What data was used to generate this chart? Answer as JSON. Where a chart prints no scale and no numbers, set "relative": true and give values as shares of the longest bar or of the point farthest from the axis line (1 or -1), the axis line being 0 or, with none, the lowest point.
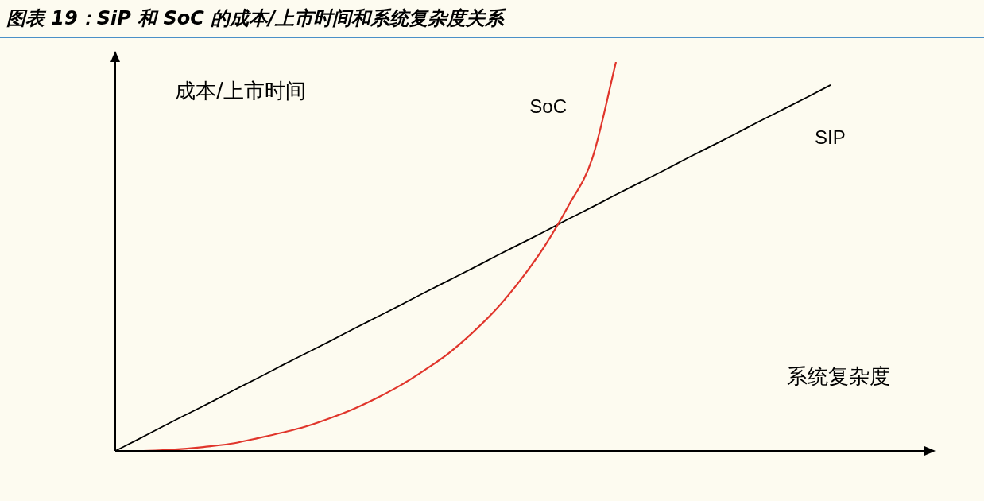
{
  "chart_data": {
    "type": "line",
    "title": "图表 19：SiP 和 SoC 的成本/上市时间和系统复杂度关系",
    "xlabel": "系统复杂度",
    "ylabel": "成本/上市时间",
    "relative": true,
    "legend": false,
    "marker": "none",
    "line_style": "solid",
    "categories": [
      null,
      null,
      null,
      null,
      null,
      null,
      null,
      null,
      null,
      null,
      null,
      null,
      null,
      null,
      null,
      null,
      null,
      null,
      null,
      null,
      null,
      null,
      null,
      null,
      null,
      null,
      null,
      null,
      null,
      null,
      null,
      null,
      null,
      null,
      null
    ],
    "series": [
      {
        "name": "SoC",
        "color": "#e0352b",
        "values": [
          0,
          0,
          0.002,
          0.006,
          0.012,
          0.02,
          0.033,
          0.047,
          0.063,
          0.084,
          0.108,
          0.137,
          0.17,
          0.209,
          0.252,
          0.305,
          0.366,
          0.44,
          0.526,
          0.63,
          0.751,
          1,
          null,
          null,
          null,
          null,
          null,
          null,
          null,
          null,
          null,
          null,
          null,
          null,
          null
        ]
      },
      {
        "name": "SIP",
        "color": "#000000",
        "values": [
          0,
          0.031,
          0.063,
          0.094,
          0.125,
          0.157,
          0.188,
          0.22,
          0.251,
          0.282,
          0.314,
          0.345,
          0.376,
          0.408,
          0.439,
          0.47,
          0.502,
          0.533,
          0.564,
          0.596,
          0.627,
          0.659,
          0.69,
          0.721,
          0.753,
          0.784,
          0.815,
          0.847,
          0.878,
          0.909,
          0.941,
          null,
          null,
          null,
          null
        ]
      }
    ]
  }
}
